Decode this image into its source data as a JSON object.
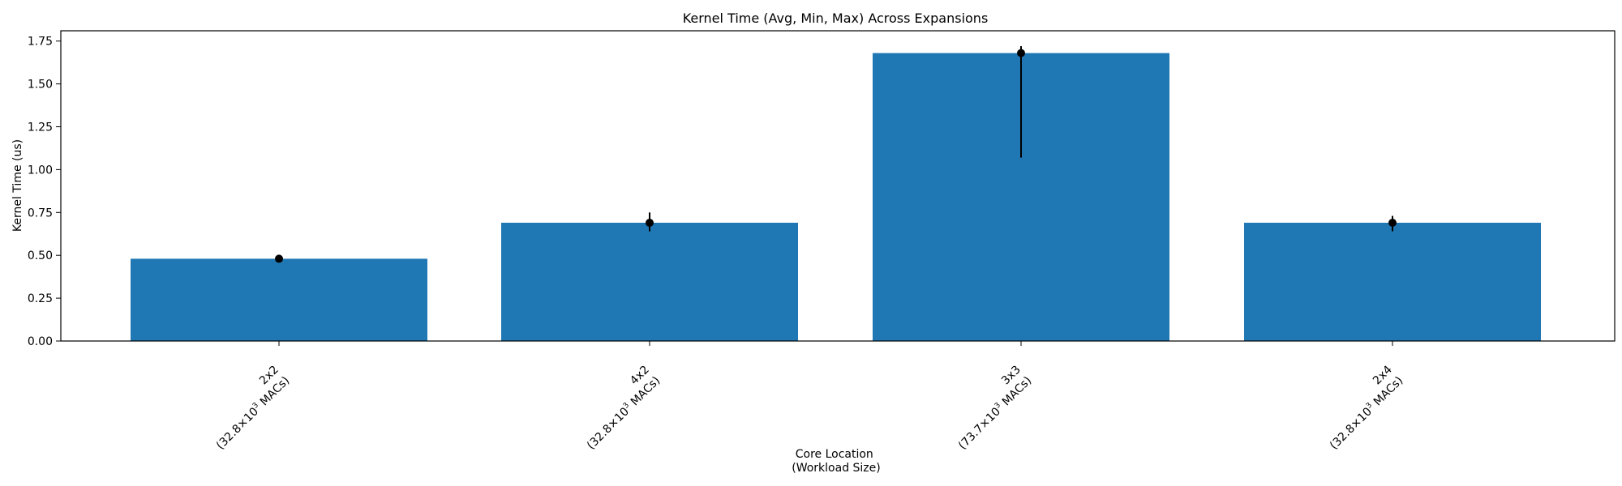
{
  "chart_data": {
    "type": "bar",
    "title": "Kernel Time (Avg, Min, Max) Across Expansions",
    "xlabel_lines": [
      "Core Location",
      "(Workload Size)"
    ],
    "ylabel": "Kernel Time (us)",
    "ylim": [
      0,
      1.81
    ],
    "yticks": [
      0.0,
      0.25,
      0.5,
      0.75,
      1.0,
      1.25,
      1.5,
      1.75
    ],
    "ytick_labels": [
      "0.00",
      "0.25",
      "0.50",
      "0.75",
      "1.00",
      "1.25",
      "1.50",
      "1.75"
    ],
    "grid": false,
    "bar_color": "#1f77b4",
    "errorbar_color": "#000000",
    "categories": [
      {
        "name": "2x2",
        "workload": "32.8",
        "avg": 0.48,
        "min": 0.47,
        "max": 0.49
      },
      {
        "name": "4x2",
        "workload": "32.8",
        "avg": 0.69,
        "min": 0.64,
        "max": 0.75
      },
      {
        "name": "3x3",
        "workload": "73.7",
        "avg": 1.68,
        "min": 1.07,
        "max": 1.72
      },
      {
        "name": "2x4",
        "workload": "32.8",
        "avg": 0.69,
        "min": 0.64,
        "max": 0.73
      }
    ]
  }
}
